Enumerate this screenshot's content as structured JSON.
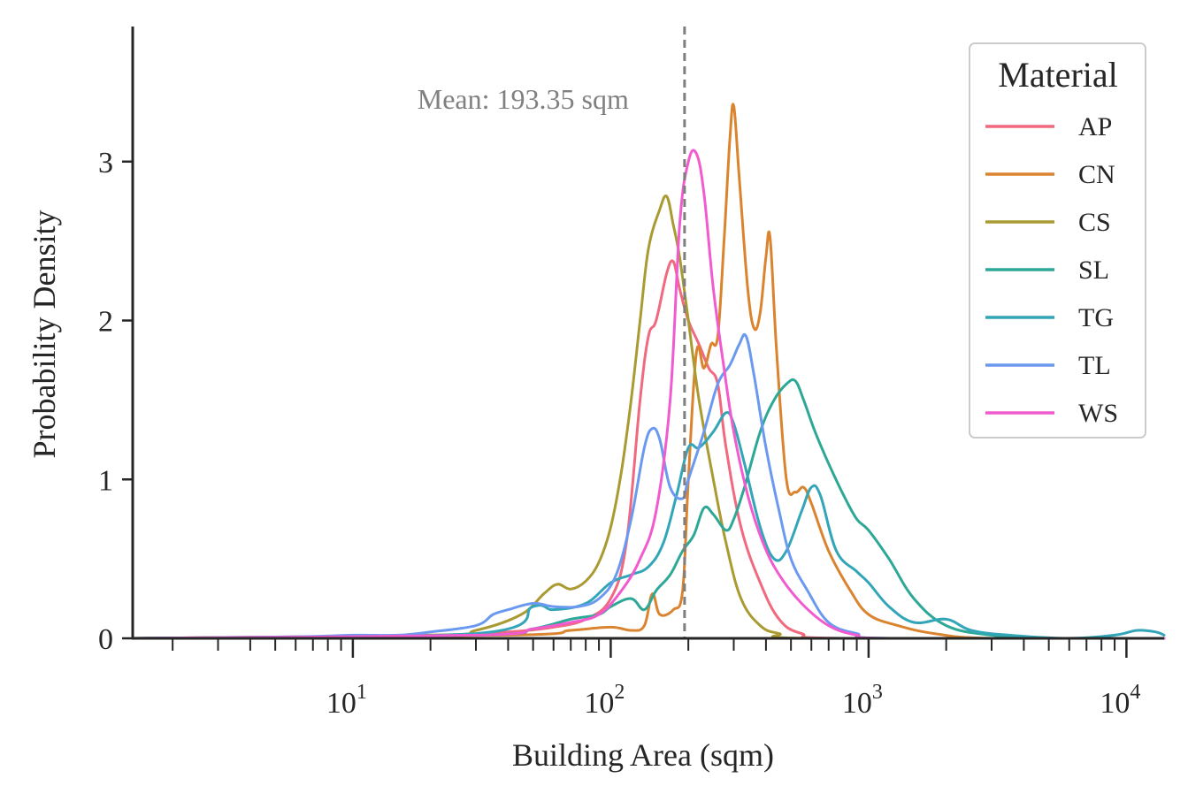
{
  "chart_data": {
    "type": "line",
    "title": "",
    "xlabel": "Building Area (sqm)",
    "ylabel": "Probability Density",
    "xscale": "log",
    "xlim": [
      1.4,
      14000
    ],
    "ylim": [
      0,
      3.85
    ],
    "yticks": [
      0,
      1,
      2,
      3
    ],
    "xtick_labels": [
      {
        "value": 10,
        "base": "10",
        "exp": "1"
      },
      {
        "value": 100,
        "base": "10",
        "exp": "2"
      },
      {
        "value": 1000,
        "base": "10",
        "exp": "3"
      },
      {
        "value": 10000,
        "base": "10",
        "exp": "4"
      }
    ],
    "grid": false,
    "legend": {
      "title": "Material",
      "placement": "top-right"
    },
    "annotation": {
      "text": "Mean: 193.35 sqm",
      "x": 193.35
    },
    "series": [
      {
        "name": "AP",
        "color": "#f0697f",
        "points": [
          [
            1.4,
            0
          ],
          [
            20,
            0.02
          ],
          [
            40,
            0.04
          ],
          [
            60,
            0.07
          ],
          [
            80,
            0.12
          ],
          [
            100,
            0.25
          ],
          [
            115,
            0.6
          ],
          [
            130,
            1.5
          ],
          [
            140,
            1.9
          ],
          [
            150,
            2.0
          ],
          [
            165,
            2.3
          ],
          [
            175,
            2.37
          ],
          [
            185,
            2.2
          ],
          [
            200,
            2.0
          ],
          [
            220,
            1.85
          ],
          [
            240,
            1.7
          ],
          [
            260,
            1.6
          ],
          [
            280,
            1.2
          ],
          [
            320,
            0.7
          ],
          [
            380,
            0.35
          ],
          [
            450,
            0.12
          ],
          [
            550,
            0.03
          ],
          [
            800,
            0
          ],
          [
            14000,
            0
          ]
        ]
      },
      {
        "name": "CN",
        "color": "#db8430",
        "points": [
          [
            1.4,
            0
          ],
          [
            40,
            0.02
          ],
          [
            70,
            0.05
          ],
          [
            100,
            0.07
          ],
          [
            120,
            0.05
          ],
          [
            135,
            0.08
          ],
          [
            145,
            0.28
          ],
          [
            155,
            0.15
          ],
          [
            175,
            0.18
          ],
          [
            190,
            0.3
          ],
          [
            200,
            1.0
          ],
          [
            215,
            1.8
          ],
          [
            230,
            1.7
          ],
          [
            245,
            1.85
          ],
          [
            260,
            1.9
          ],
          [
            275,
            2.5
          ],
          [
            290,
            3.15
          ],
          [
            300,
            3.35
          ],
          [
            315,
            2.9
          ],
          [
            340,
            2.2
          ],
          [
            360,
            1.95
          ],
          [
            380,
            2.05
          ],
          [
            400,
            2.4
          ],
          [
            415,
            2.52
          ],
          [
            440,
            1.8
          ],
          [
            480,
            1.0
          ],
          [
            520,
            0.92
          ],
          [
            560,
            0.95
          ],
          [
            600,
            0.85
          ],
          [
            700,
            0.55
          ],
          [
            850,
            0.3
          ],
          [
            1000,
            0.15
          ],
          [
            1300,
            0.08
          ],
          [
            1800,
            0.03
          ],
          [
            3000,
            0
          ],
          [
            14000,
            0
          ]
        ]
      },
      {
        "name": "CS",
        "color": "#aa9a32",
        "points": [
          [
            1.4,
            0
          ],
          [
            20,
            0.02
          ],
          [
            30,
            0.05
          ],
          [
            45,
            0.15
          ],
          [
            55,
            0.28
          ],
          [
            62,
            0.34
          ],
          [
            70,
            0.31
          ],
          [
            80,
            0.36
          ],
          [
            90,
            0.48
          ],
          [
            100,
            0.7
          ],
          [
            110,
            1.05
          ],
          [
            120,
            1.5
          ],
          [
            130,
            2.0
          ],
          [
            140,
            2.45
          ],
          [
            155,
            2.7
          ],
          [
            165,
            2.78
          ],
          [
            175,
            2.6
          ],
          [
            185,
            2.4
          ],
          [
            200,
            2.0
          ],
          [
            220,
            1.5
          ],
          [
            250,
            1.0
          ],
          [
            280,
            0.6
          ],
          [
            320,
            0.25
          ],
          [
            380,
            0.08
          ],
          [
            450,
            0.03
          ],
          [
            600,
            0
          ],
          [
            14000,
            0
          ]
        ]
      },
      {
        "name": "SL",
        "color": "#2ea896",
        "points": [
          [
            1.4,
            0
          ],
          [
            30,
            0.02
          ],
          [
            50,
            0.06
          ],
          [
            70,
            0.12
          ],
          [
            90,
            0.15
          ],
          [
            100,
            0.2
          ],
          [
            120,
            0.25
          ],
          [
            135,
            0.18
          ],
          [
            150,
            0.3
          ],
          [
            170,
            0.4
          ],
          [
            190,
            0.55
          ],
          [
            210,
            0.65
          ],
          [
            230,
            0.82
          ],
          [
            250,
            0.78
          ],
          [
            280,
            0.68
          ],
          [
            300,
            0.75
          ],
          [
            330,
            0.95
          ],
          [
            380,
            1.3
          ],
          [
            430,
            1.5
          ],
          [
            480,
            1.6
          ],
          [
            520,
            1.62
          ],
          [
            560,
            1.5
          ],
          [
            620,
            1.3
          ],
          [
            700,
            1.1
          ],
          [
            800,
            0.9
          ],
          [
            900,
            0.75
          ],
          [
            1000,
            0.68
          ],
          [
            1200,
            0.5
          ],
          [
            1500,
            0.25
          ],
          [
            2000,
            0.08
          ],
          [
            3000,
            0.02
          ],
          [
            5000,
            0
          ],
          [
            14000,
            0
          ]
        ]
      },
      {
        "name": "TG",
        "color": "#32a6b8",
        "points": [
          [
            1.4,
            0
          ],
          [
            30,
            0.03
          ],
          [
            50,
            0.2
          ],
          [
            60,
            0.18
          ],
          [
            80,
            0.22
          ],
          [
            100,
            0.35
          ],
          [
            120,
            0.4
          ],
          [
            140,
            0.45
          ],
          [
            160,
            0.6
          ],
          [
            180,
            0.9
          ],
          [
            200,
            1.2
          ],
          [
            220,
            1.2
          ],
          [
            250,
            1.3
          ],
          [
            280,
            1.42
          ],
          [
            300,
            1.35
          ],
          [
            330,
            1.1
          ],
          [
            380,
            0.7
          ],
          [
            430,
            0.5
          ],
          [
            480,
            0.55
          ],
          [
            550,
            0.8
          ],
          [
            600,
            0.95
          ],
          [
            650,
            0.9
          ],
          [
            750,
            0.55
          ],
          [
            900,
            0.42
          ],
          [
            1000,
            0.35
          ],
          [
            1200,
            0.2
          ],
          [
            1500,
            0.1
          ],
          [
            2000,
            0.12
          ],
          [
            2500,
            0.05
          ],
          [
            3500,
            0.02
          ],
          [
            6000,
            0
          ],
          [
            9000,
            0.02
          ],
          [
            11000,
            0.05
          ],
          [
            13000,
            0.04
          ],
          [
            14000,
            0.02
          ]
        ]
      },
      {
        "name": "TL",
        "color": "#6b99ef",
        "points": [
          [
            1.4,
            0
          ],
          [
            6,
            0.01
          ],
          [
            10,
            0.02
          ],
          [
            15,
            0.02
          ],
          [
            20,
            0.04
          ],
          [
            30,
            0.08
          ],
          [
            35,
            0.15
          ],
          [
            40,
            0.18
          ],
          [
            50,
            0.22
          ],
          [
            60,
            0.2
          ],
          [
            75,
            0.2
          ],
          [
            90,
            0.25
          ],
          [
            105,
            0.4
          ],
          [
            120,
            0.75
          ],
          [
            135,
            1.2
          ],
          [
            145,
            1.32
          ],
          [
            155,
            1.25
          ],
          [
            170,
            0.95
          ],
          [
            190,
            0.88
          ],
          [
            200,
            1.0
          ],
          [
            230,
            1.3
          ],
          [
            260,
            1.6
          ],
          [
            290,
            1.72
          ],
          [
            315,
            1.85
          ],
          [
            335,
            1.9
          ],
          [
            360,
            1.65
          ],
          [
            400,
            1.2
          ],
          [
            450,
            0.8
          ],
          [
            500,
            0.5
          ],
          [
            580,
            0.3
          ],
          [
            700,
            0.1
          ],
          [
            900,
            0.03
          ],
          [
            1200,
            0
          ],
          [
            14000,
            0
          ]
        ]
      },
      {
        "name": "WS",
        "color": "#f25bcf",
        "points": [
          [
            1.4,
            0
          ],
          [
            30,
            0.02
          ],
          [
            50,
            0.06
          ],
          [
            70,
            0.1
          ],
          [
            90,
            0.15
          ],
          [
            110,
            0.3
          ],
          [
            130,
            0.5
          ],
          [
            150,
            0.8
          ],
          [
            170,
            1.5
          ],
          [
            185,
            2.6
          ],
          [
            200,
            3.0
          ],
          [
            215,
            3.05
          ],
          [
            230,
            2.8
          ],
          [
            250,
            2.2
          ],
          [
            275,
            1.7
          ],
          [
            300,
            1.3
          ],
          [
            340,
            0.9
          ],
          [
            390,
            0.6
          ],
          [
            450,
            0.4
          ],
          [
            550,
            0.22
          ],
          [
            700,
            0.08
          ],
          [
            900,
            0.02
          ],
          [
            1200,
            0
          ],
          [
            14000,
            0
          ]
        ]
      }
    ]
  }
}
